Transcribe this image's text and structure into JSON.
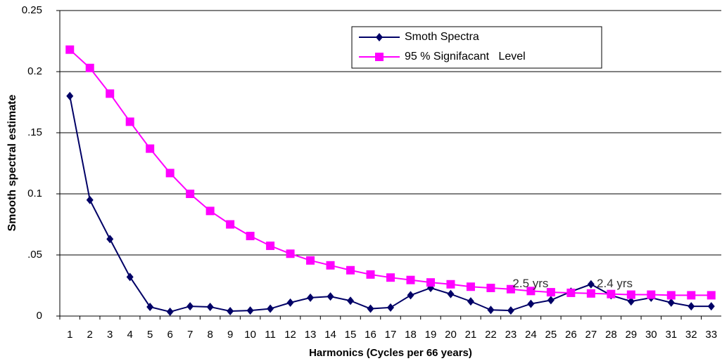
{
  "chart_data": {
    "type": "line",
    "y_label": "Smooth spectral estimate",
    "x_label": "Harmonics (Cycles per 66 years)",
    "categories": [
      "1",
      "2",
      "3",
      "4",
      "5",
      "6",
      "7",
      "8",
      "9",
      "10",
      "11",
      "12",
      "13",
      "14",
      "15",
      "16",
      "17",
      "18",
      "19",
      "20",
      "21",
      "22",
      "23",
      "24",
      "25",
      "26",
      "27",
      "28",
      "29",
      "30",
      "31",
      "32",
      "33"
    ],
    "series": [
      {
        "name": "Smoth Spectra",
        "color": "#000066",
        "marker": "diamond",
        "values": [
          0.18,
          0.095,
          0.063,
          0.032,
          0.0075,
          0.0035,
          0.008,
          0.0075,
          0.004,
          0.0045,
          0.006,
          0.011,
          0.015,
          0.016,
          0.0125,
          0.006,
          0.007,
          0.017,
          0.023,
          0.018,
          0.012,
          0.005,
          0.0045,
          0.01,
          0.013,
          0.02,
          0.026,
          0.017,
          0.012,
          0.015,
          0.011,
          0.008,
          0.008
        ]
      },
      {
        "name": "95 % Signifacant   Level",
        "color": "#ff00ff",
        "marker": "square",
        "values": [
          0.218,
          0.203,
          0.182,
          0.159,
          0.137,
          0.117,
          0.1,
          0.086,
          0.075,
          0.0655,
          0.0575,
          0.051,
          0.0455,
          0.0415,
          0.0375,
          0.034,
          0.0315,
          0.0295,
          0.0275,
          0.026,
          0.024,
          0.023,
          0.022,
          0.0205,
          0.0195,
          0.019,
          0.0185,
          0.018,
          0.0175,
          0.0175,
          0.017,
          0.017,
          0.017
        ]
      }
    ],
    "annotations": [
      "2.5 yrs",
      "2.4 yrs"
    ],
    "ylim": [
      0,
      0.25
    ],
    "yticks": [
      0,
      {
        "value": 0.05,
        "label": ".05"
      },
      0.1,
      {
        "value": 0.15,
        "label": ".15"
      },
      0.2,
      0.25
    ],
    "grid": true
  }
}
